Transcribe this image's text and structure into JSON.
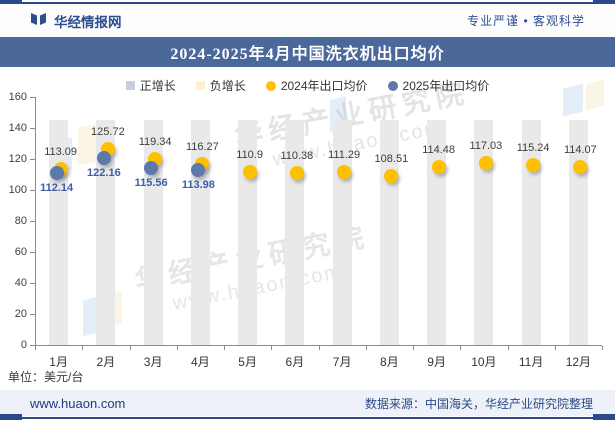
{
  "header": {
    "brand": "华经情报网",
    "slogan": "专业严谨 • 客观科学"
  },
  "title": "2024-2025年4月中国洗衣机出口均价",
  "legend": [
    {
      "label": "正增长",
      "shape": "square",
      "color": "#c5cddf"
    },
    {
      "label": "负增长",
      "shape": "square",
      "color": "#fdf0cb"
    },
    {
      "label": "2024年出口均价",
      "shape": "circle",
      "color": "#ffc000"
    },
    {
      "label": "2025年出口均价",
      "shape": "circle",
      "color": "#5d78ab"
    }
  ],
  "chart_data": {
    "type": "scatter",
    "title": "2024-2025年4月中国洗衣机出口均价",
    "categories": [
      "1月",
      "2月",
      "3月",
      "4月",
      "5月",
      "6月",
      "7月",
      "8月",
      "9月",
      "10月",
      "11月",
      "12月"
    ],
    "series": [
      {
        "name": "2024年出口均价",
        "color": "#ffc000",
        "values": [
          113.09,
          125.72,
          119.34,
          116.27,
          110.9,
          110.38,
          111.29,
          108.51,
          114.48,
          117.03,
          115.24,
          114.07
        ]
      },
      {
        "name": "2025年出口均价",
        "color": "#5d78ab",
        "values": [
          112.14,
          122.16,
          115.56,
          113.98,
          null,
          null,
          null,
          null,
          null,
          null,
          null,
          null
        ]
      }
    ],
    "background_bar_value": 145,
    "background_bar_color": "#e9e9e9",
    "ylim": [
      0,
      160
    ],
    "ytick_step": 20,
    "grid": false,
    "legend_position": "top",
    "ylabel": "",
    "xlabel": ""
  },
  "footnote_unit": "单位：美元/台",
  "footer": {
    "site": "www.huaon.com",
    "source": "数据来源：中国海关，华经产业研究院整理"
  },
  "watermarks": {
    "brand_text": "华经产业研究院",
    "site_text": "www.huaon.com"
  },
  "colors": {
    "accent_dark_blue": "#2b4a8b",
    "title_bar_bg": "#4b689b",
    "label_2024": "#3c3c3c",
    "label_2025": "#3c5ea8"
  }
}
